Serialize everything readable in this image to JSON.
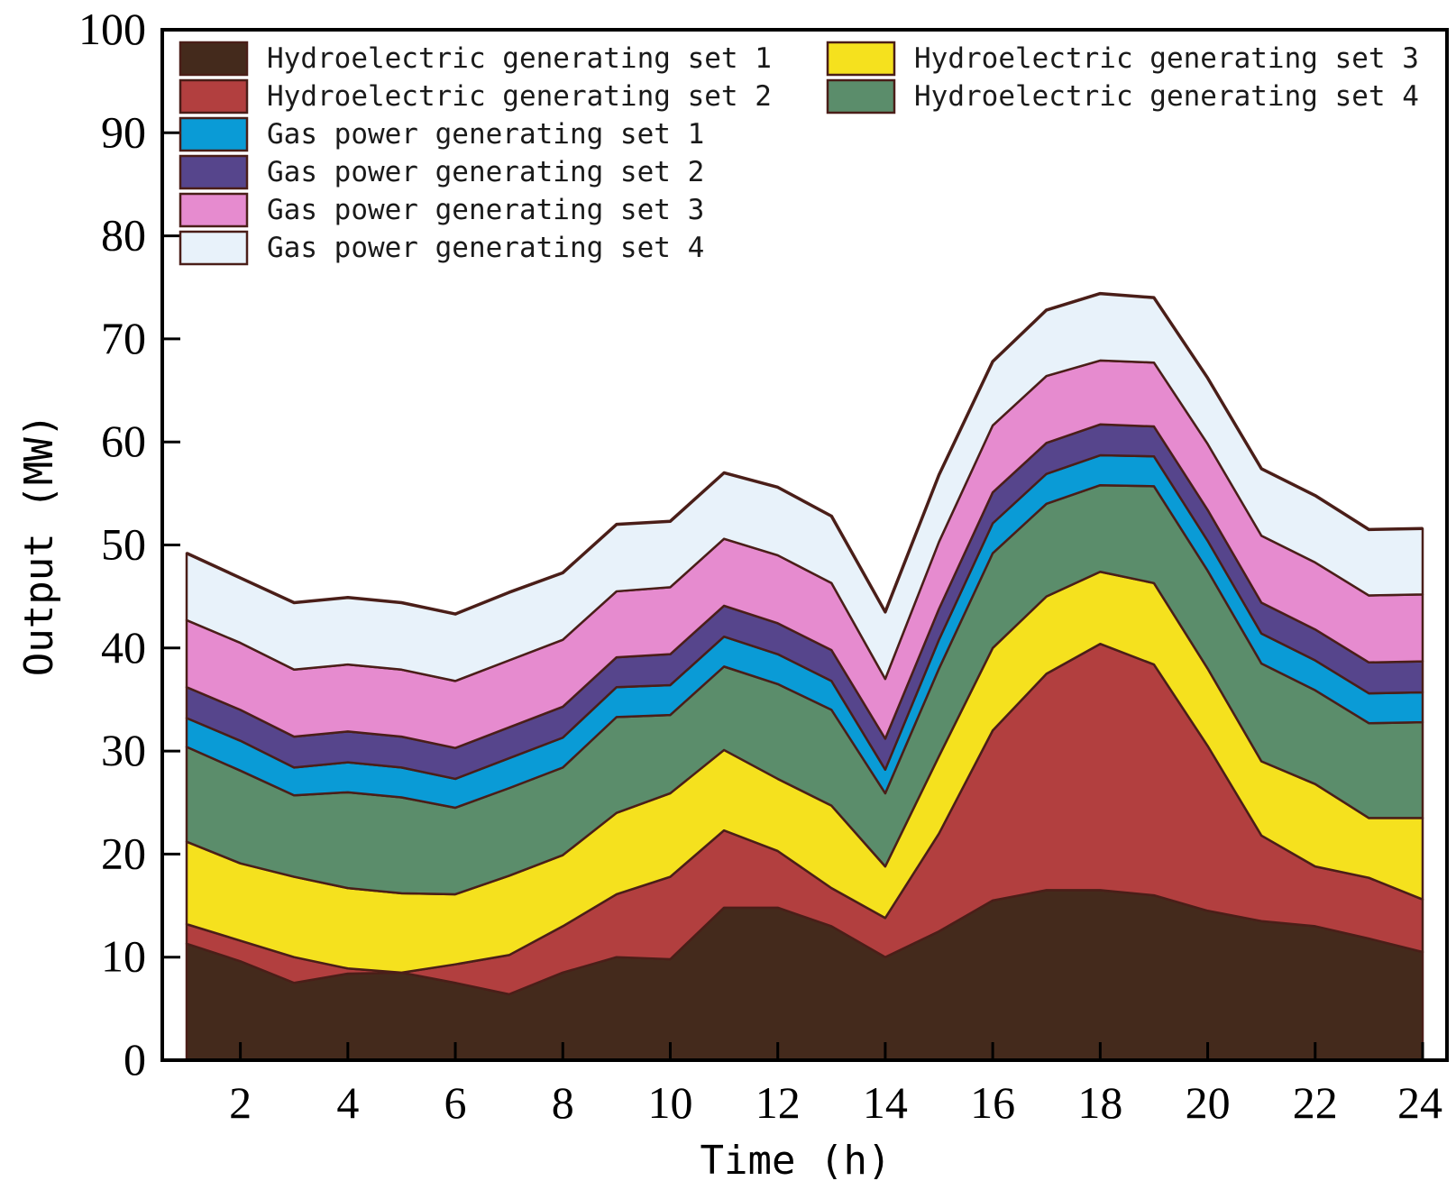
{
  "chart_data": {
    "type": "area",
    "stacked": true,
    "title": "",
    "xlabel": "Time (h)",
    "ylabel": "Output (MW)",
    "xlim": [
      1,
      24
    ],
    "ylim": [
      0,
      100
    ],
    "xticks": [
      2,
      4,
      6,
      8,
      10,
      12,
      14,
      16,
      18,
      20,
      22,
      24
    ],
    "yticks": [
      0,
      10,
      20,
      30,
      40,
      50,
      60,
      70,
      80,
      90,
      100
    ],
    "legend_position": "top",
    "x": [
      1,
      2,
      3,
      4,
      5,
      6,
      7,
      8,
      9,
      10,
      11,
      12,
      13,
      14,
      15,
      16,
      17,
      18,
      19,
      20,
      21,
      22,
      23,
      24
    ],
    "series": [
      {
        "name": "Hydroelectric generating set 1",
        "color": "#442a1c",
        "values": [
          11.3,
          9.6,
          7.5,
          8.4,
          8.5,
          7.5,
          6.4,
          8.5,
          10.0,
          9.8,
          14.8,
          14.8,
          13.0,
          10.0,
          12.5,
          15.5,
          16.5,
          16.5,
          16.0,
          14.5,
          13.5,
          13.0,
          11.8,
          10.5
        ]
      },
      {
        "name": "Hydroelectric generating set 2",
        "color": "#b23f3f",
        "values": [
          1.9,
          2.0,
          2.5,
          0.5,
          0.0,
          1.8,
          3.8,
          4.5,
          6.1,
          8.0,
          7.5,
          5.5,
          3.7,
          3.8,
          9.5,
          16.5,
          21.0,
          23.9,
          22.4,
          16.0,
          8.3,
          5.8,
          5.9,
          5.1
        ]
      },
      {
        "name": "Hydroelectric generating set 3",
        "color": "#f5e11e",
        "values": [
          8.0,
          7.5,
          7.8,
          7.8,
          7.7,
          6.8,
          7.7,
          6.9,
          7.9,
          8.1,
          7.8,
          7.0,
          8.0,
          5.0,
          7.5,
          8.0,
          7.5,
          7.0,
          7.9,
          7.5,
          7.2,
          8.0,
          5.8,
          7.9
        ]
      },
      {
        "name": "Hydroelectric generating set 4",
        "color": "#5b8d6b",
        "values": [
          9.2,
          9.0,
          7.9,
          9.3,
          9.3,
          8.4,
          8.5,
          8.5,
          9.3,
          7.6,
          8.1,
          9.2,
          9.3,
          7.1,
          8.5,
          9.2,
          9.0,
          8.4,
          9.4,
          9.5,
          9.5,
          9.1,
          9.2,
          9.3
        ]
      },
      {
        "name": "Gas power generating set 1",
        "color": "#0a9bd6",
        "values": [
          2.8,
          2.9,
          2.7,
          2.9,
          2.9,
          2.8,
          2.9,
          2.9,
          2.9,
          2.9,
          2.9,
          2.9,
          2.8,
          2.3,
          2.8,
          2.9,
          2.9,
          2.9,
          2.9,
          2.9,
          2.9,
          2.9,
          2.9,
          2.9
        ]
      },
      {
        "name": "Gas power generating set 2",
        "color": "#56458c",
        "values": [
          3.0,
          3.0,
          3.0,
          3.0,
          3.0,
          3.0,
          3.0,
          3.0,
          2.9,
          3.0,
          3.0,
          3.0,
          3.0,
          3.0,
          3.0,
          3.0,
          3.0,
          3.0,
          2.9,
          3.0,
          3.0,
          3.0,
          3.0,
          3.0
        ]
      },
      {
        "name": "Gas power generating set 3",
        "color": "#e68bcf",
        "values": [
          6.5,
          6.5,
          6.5,
          6.5,
          6.5,
          6.5,
          6.5,
          6.5,
          6.4,
          6.5,
          6.5,
          6.6,
          6.5,
          5.8,
          6.5,
          6.5,
          6.5,
          6.2,
          6.2,
          6.4,
          6.5,
          6.5,
          6.5,
          6.5
        ]
      },
      {
        "name": "Gas power generating set 4",
        "color": "#e8f2fa",
        "values": [
          6.5,
          6.3,
          6.5,
          6.5,
          6.5,
          6.5,
          6.6,
          6.5,
          6.5,
          6.4,
          6.4,
          6.6,
          6.5,
          6.5,
          6.5,
          6.2,
          6.4,
          6.5,
          6.3,
          6.4,
          6.5,
          6.5,
          6.4,
          6.4
        ]
      }
    ]
  }
}
